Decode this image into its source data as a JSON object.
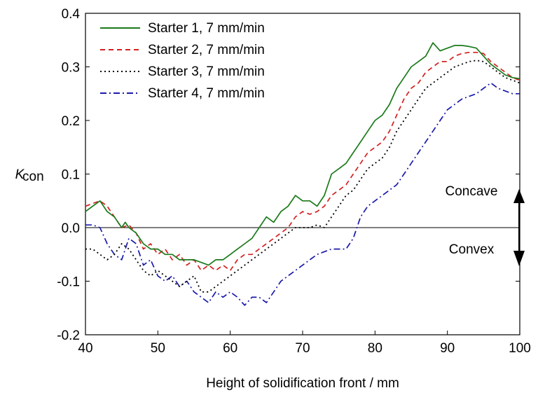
{
  "chart_data": {
    "type": "line",
    "title": "",
    "xlabel": "Height of solidification front / mm",
    "ylabel_main": "K",
    "ylabel_sub": "con",
    "xlim": [
      40,
      100
    ],
    "ylim": [
      -0.2,
      0.4
    ],
    "xticks": [
      40,
      50,
      60,
      70,
      80,
      90,
      100
    ],
    "yticks": [
      -0.2,
      -0.1,
      0.0,
      0.1,
      0.2,
      0.3,
      0.4
    ],
    "xtick_labels": [
      "40",
      "50",
      "60",
      "70",
      "80",
      "90",
      "100"
    ],
    "ytick_labels": [
      "-0.2",
      "-0.1",
      "0.0",
      "0.1",
      "0.2",
      "0.3",
      "0.4"
    ],
    "zero_line": true,
    "grid": false,
    "legend_position": "top-left",
    "annotations": {
      "upper": "Concave",
      "lower": "Convex"
    },
    "series": [
      {
        "name": "Starter 1, 7 mm/min",
        "color": "#1a7a1a",
        "style": "solid",
        "x": [
          40,
          41,
          42,
          43,
          44,
          45,
          45.5,
          46,
          47,
          48,
          49,
          50,
          51,
          52,
          53,
          54,
          55,
          56,
          57,
          58,
          59,
          60,
          61,
          62,
          63,
          64,
          65,
          66,
          67,
          68,
          69,
          70,
          71,
          72,
          73,
          74,
          75,
          76,
          77,
          78,
          79,
          80,
          81,
          82,
          83,
          84,
          85,
          86,
          87,
          88,
          89,
          90,
          91,
          92,
          93,
          94,
          95,
          96,
          97,
          98,
          99,
          100
        ],
        "y": [
          0.03,
          0.04,
          0.05,
          0.03,
          0.02,
          0.0,
          0.01,
          0.0,
          -0.01,
          -0.03,
          -0.04,
          -0.04,
          -0.05,
          -0.05,
          -0.06,
          -0.06,
          -0.06,
          -0.065,
          -0.07,
          -0.06,
          -0.06,
          -0.05,
          -0.04,
          -0.03,
          -0.02,
          0.0,
          0.02,
          0.01,
          0.03,
          0.04,
          0.06,
          0.05,
          0.05,
          0.04,
          0.06,
          0.1,
          0.11,
          0.12,
          0.14,
          0.16,
          0.18,
          0.2,
          0.21,
          0.23,
          0.26,
          0.28,
          0.3,
          0.31,
          0.32,
          0.345,
          0.33,
          0.335,
          0.34,
          0.34,
          0.338,
          0.335,
          0.32,
          0.305,
          0.295,
          0.285,
          0.28,
          0.278
        ]
      },
      {
        "name": "Starter 2, 7 mm/min",
        "color": "#d42020",
        "style": "dashed",
        "x": [
          40,
          41,
          42,
          43,
          44,
          45,
          46,
          47,
          48,
          49,
          50,
          51,
          52,
          53,
          54,
          55,
          56,
          57,
          58,
          59,
          60,
          61,
          62,
          63,
          64,
          65,
          66,
          67,
          68,
          69,
          70,
          71,
          72,
          73,
          74,
          75,
          76,
          77,
          78,
          79,
          80,
          81,
          82,
          83,
          84,
          85,
          86,
          87,
          88,
          89,
          90,
          91,
          92,
          93,
          94,
          95,
          96,
          97,
          98,
          99,
          100
        ],
        "y": [
          0.04,
          0.045,
          0.05,
          0.04,
          0.02,
          0.0,
          0.005,
          -0.01,
          -0.04,
          -0.03,
          -0.05,
          -0.04,
          -0.06,
          -0.05,
          -0.07,
          -0.06,
          -0.08,
          -0.07,
          -0.08,
          -0.07,
          -0.08,
          -0.06,
          -0.05,
          -0.05,
          -0.04,
          -0.03,
          -0.02,
          -0.01,
          0.0,
          0.02,
          0.03,
          0.025,
          0.03,
          0.04,
          0.06,
          0.07,
          0.08,
          0.1,
          0.12,
          0.14,
          0.15,
          0.16,
          0.18,
          0.21,
          0.24,
          0.26,
          0.27,
          0.29,
          0.3,
          0.31,
          0.31,
          0.32,
          0.325,
          0.327,
          0.327,
          0.325,
          0.31,
          0.3,
          0.29,
          0.28,
          0.275
        ]
      },
      {
        "name": "Starter 3, 7 mm/min",
        "color": "#000000",
        "style": "dotted",
        "x": [
          40,
          41,
          42,
          43,
          44,
          45,
          46,
          47,
          48,
          49,
          50,
          51,
          52,
          53,
          54,
          55,
          56,
          57,
          58,
          59,
          60,
          61,
          62,
          63,
          64,
          65,
          66,
          67,
          68,
          69,
          70,
          71,
          72,
          73,
          74,
          75,
          76,
          77,
          78,
          79,
          80,
          81,
          82,
          83,
          84,
          85,
          86,
          87,
          88,
          89,
          90,
          91,
          92,
          93,
          94,
          95,
          96,
          97,
          98,
          99,
          100
        ],
        "y": [
          -0.04,
          -0.04,
          -0.05,
          -0.06,
          -0.05,
          -0.03,
          -0.04,
          -0.06,
          -0.08,
          -0.09,
          -0.08,
          -0.09,
          -0.1,
          -0.11,
          -0.1,
          -0.09,
          -0.12,
          -0.12,
          -0.11,
          -0.1,
          -0.09,
          -0.08,
          -0.07,
          -0.06,
          -0.05,
          -0.04,
          -0.03,
          -0.02,
          -0.01,
          0.0,
          0.0,
          0.0,
          0.005,
          0.0,
          0.02,
          0.04,
          0.06,
          0.07,
          0.09,
          0.11,
          0.12,
          0.13,
          0.15,
          0.18,
          0.2,
          0.22,
          0.24,
          0.26,
          0.27,
          0.28,
          0.29,
          0.3,
          0.305,
          0.31,
          0.312,
          0.31,
          0.3,
          0.29,
          0.28,
          0.275,
          0.27
        ]
      },
      {
        "name": "Starter 4, 7 mm/min",
        "color": "#1a1aaa",
        "style": "dashdot",
        "x": [
          40,
          41,
          42,
          43,
          44,
          45,
          46,
          47,
          48,
          49,
          50,
          51,
          52,
          53,
          54,
          55,
          56,
          57,
          58,
          59,
          60,
          61,
          62,
          63,
          64,
          65,
          66,
          67,
          68,
          69,
          70,
          71,
          72,
          73,
          74,
          75,
          76,
          77,
          78,
          79,
          80,
          81,
          82,
          83,
          84,
          85,
          86,
          87,
          88,
          89,
          90,
          91,
          92,
          93,
          94,
          95,
          96,
          97,
          98,
          99,
          100
        ],
        "y": [
          0.005,
          0.005,
          0.0,
          -0.03,
          -0.05,
          -0.06,
          -0.02,
          -0.03,
          -0.07,
          -0.06,
          -0.09,
          -0.1,
          -0.09,
          -0.11,
          -0.1,
          -0.12,
          -0.13,
          -0.14,
          -0.12,
          -0.13,
          -0.12,
          -0.13,
          -0.145,
          -0.13,
          -0.13,
          -0.14,
          -0.12,
          -0.1,
          -0.09,
          -0.08,
          -0.07,
          -0.06,
          -0.05,
          -0.045,
          -0.04,
          -0.04,
          -0.04,
          -0.02,
          0.02,
          0.04,
          0.05,
          0.06,
          0.07,
          0.08,
          0.1,
          0.12,
          0.14,
          0.16,
          0.18,
          0.2,
          0.22,
          0.23,
          0.24,
          0.245,
          0.25,
          0.26,
          0.27,
          0.26,
          0.255,
          0.25,
          0.25
        ]
      }
    ]
  }
}
